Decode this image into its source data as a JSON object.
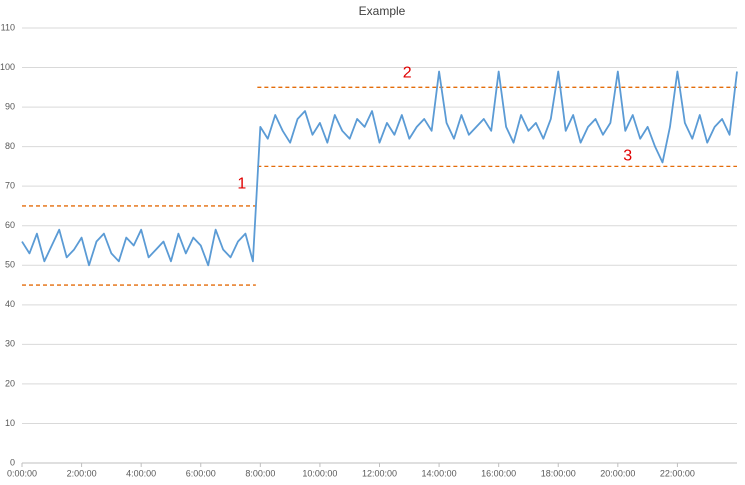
{
  "chart_data": {
    "type": "line",
    "title": "Example",
    "x": [
      0,
      0.25,
      0.5,
      0.75,
      1,
      1.25,
      1.5,
      1.75,
      2,
      2.25,
      2.5,
      2.75,
      3,
      3.25,
      3.5,
      3.75,
      4,
      4.25,
      4.5,
      4.75,
      5,
      5.25,
      5.5,
      5.75,
      6,
      6.25,
      6.5,
      6.75,
      7,
      7.25,
      7.5,
      7.75,
      8,
      8.25,
      8.5,
      8.75,
      9,
      9.25,
      9.5,
      9.75,
      10,
      10.25,
      10.5,
      10.75,
      11,
      11.25,
      11.5,
      11.75,
      12,
      12.25,
      12.5,
      12.75,
      13,
      13.25,
      13.5,
      13.75,
      14,
      14.25,
      14.5,
      14.75,
      15,
      15.25,
      15.5,
      15.75,
      16,
      16.25,
      16.5,
      16.75,
      17,
      17.25,
      17.5,
      17.75,
      18,
      18.25,
      18.5,
      18.75,
      19,
      19.25,
      19.5,
      19.75,
      20,
      20.25,
      20.5,
      20.75,
      21,
      21.25,
      21.5,
      21.75,
      22,
      22.25,
      22.5,
      22.75,
      23,
      23.25,
      23.5,
      23.75,
      24
    ],
    "series": [
      {
        "color": "#5b9bd5",
        "values": [
          56,
          53,
          58,
          51,
          55,
          59,
          52,
          54,
          57,
          50,
          56,
          58,
          53,
          51,
          57,
          55,
          59,
          52,
          54,
          56,
          51,
          58,
          53,
          57,
          55,
          50,
          59,
          54,
          52,
          56,
          58,
          51,
          85,
          82,
          88,
          84,
          81,
          87,
          89,
          83,
          86,
          81,
          88,
          84,
          82,
          87,
          85,
          89,
          81,
          86,
          83,
          88,
          82,
          85,
          87,
          84,
          99,
          86,
          82,
          88,
          83,
          85,
          87,
          84,
          99,
          85,
          81,
          88,
          84,
          86,
          82,
          87,
          99,
          84,
          88,
          81,
          85,
          87,
          83,
          86,
          99,
          84,
          88,
          82,
          85,
          80,
          76,
          85,
          99,
          86,
          82,
          88,
          81,
          85,
          87,
          83,
          99
        ]
      }
    ],
    "reference_lines": [
      {
        "value": 45,
        "from": 0,
        "to": 7.85
      },
      {
        "value": 65,
        "from": 0,
        "to": 7.85
      },
      {
        "value": 75,
        "from": 7.9,
        "to": 24
      },
      {
        "value": 95,
        "from": 7.9,
        "to": 24
      }
    ],
    "reference_color": "#e46c0a",
    "annotations": [
      {
        "text": "1",
        "x": 7.85,
        "y": 70.5
      },
      {
        "text": "2",
        "x": 13.4,
        "y": 98.5
      },
      {
        "text": "3",
        "x": 20.8,
        "y": 77.5
      }
    ],
    "annotation_color": "#e00000",
    "xlim": [
      0,
      24
    ],
    "xticks": [
      {
        "value": 0,
        "label": "0:00:00"
      },
      {
        "value": 2,
        "label": "2:00:00"
      },
      {
        "value": 4,
        "label": "4:00:00"
      },
      {
        "value": 6,
        "label": "6:00:00"
      },
      {
        "value": 8,
        "label": "8:00:00"
      },
      {
        "value": 10,
        "label": "10:00:00"
      },
      {
        "value": 12,
        "label": "12:00:00"
      },
      {
        "value": 14,
        "label": "14:00:00"
      },
      {
        "value": 16,
        "label": "16:00:00"
      },
      {
        "value": 18,
        "label": "18:00:00"
      },
      {
        "value": 20,
        "label": "20:00:00"
      },
      {
        "value": 22,
        "label": "22:00:00"
      }
    ],
    "ylim": [
      0,
      110
    ],
    "yticks": [
      0,
      10,
      20,
      30,
      40,
      50,
      60,
      70,
      80,
      90,
      100,
      110
    ],
    "grid": true
  }
}
